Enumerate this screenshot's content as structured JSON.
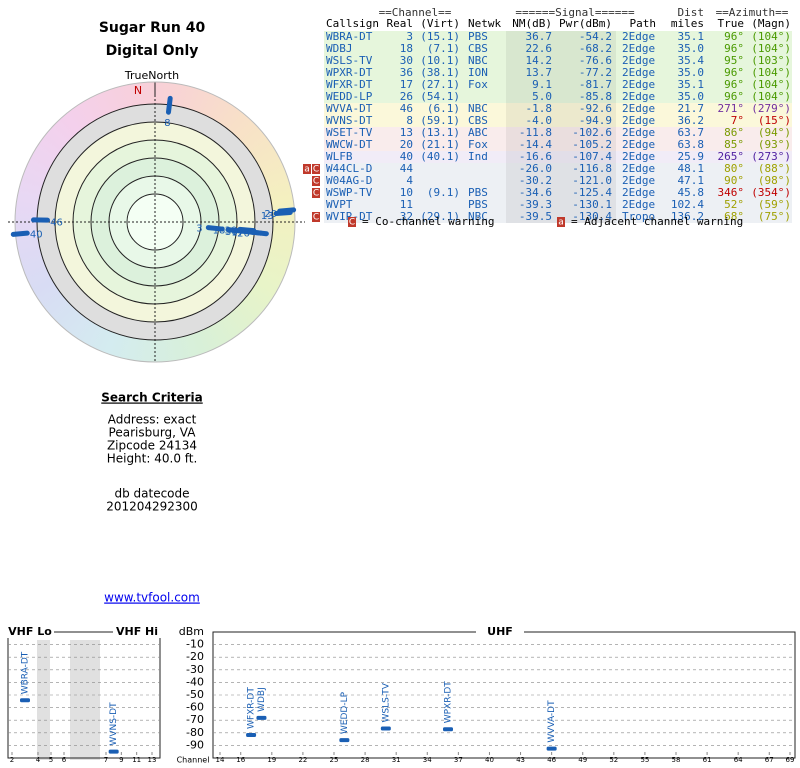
{
  "header": {
    "title": "Sugar Run 40",
    "subtitle": "Digital Only"
  },
  "polar": {
    "north_label": "TrueNorth",
    "north_mark": "N"
  },
  "table": {
    "group_headers": {
      "channel": "==Channel==",
      "signal": "======Signal======",
      "dist": "Dist",
      "azimuth": "==Azimuth=="
    },
    "columns": {
      "callsign": "Callsign",
      "real": "Real",
      "virt": "(Virt)",
      "netwk": "Netwk",
      "nm": "NM(dB)",
      "pwr": "Pwr(dBm)",
      "path": "Path",
      "dist": "miles",
      "true": "True",
      "magn": "(Magn)"
    },
    "rows": [
      {
        "callsign": "WBRA-DT",
        "real": "3",
        "virt": "(15.1)",
        "netwk": "PBS",
        "nm": "36.7",
        "pwr": "-54.2",
        "path": "2Edge",
        "dist": "35.1",
        "true": "96°",
        "magn": "(104°)",
        "color": "#e6f6dc",
        "azimuth_color": "#4a9a00"
      },
      {
        "callsign": "WDBJ",
        "real": "18",
        "virt": "(7.1)",
        "netwk": "CBS",
        "nm": "22.6",
        "pwr": "-68.2",
        "path": "2Edge",
        "dist": "35.0",
        "true": "96°",
        "magn": "(104°)",
        "color": "#e6f6dc",
        "azimuth_color": "#4a9a00"
      },
      {
        "callsign": "WSLS-TV",
        "real": "30",
        "virt": "(10.1)",
        "netwk": "NBC",
        "nm": "14.2",
        "pwr": "-76.6",
        "path": "2Edge",
        "dist": "35.4",
        "true": "95°",
        "magn": "(103°)",
        "color": "#e6f6dc",
        "azimuth_color": "#4a9a00"
      },
      {
        "callsign": "WPXR-DT",
        "real": "36",
        "virt": "(38.1)",
        "netwk": "ION",
        "nm": "13.7",
        "pwr": "-77.2",
        "path": "2Edge",
        "dist": "35.0",
        "true": "96°",
        "magn": "(104°)",
        "color": "#e6f6dc",
        "azimuth_color": "#4a9a00"
      },
      {
        "callsign": "WFXR-DT",
        "real": "17",
        "virt": "(27.1)",
        "netwk": "Fox",
        "nm": "9.1",
        "pwr": "-81.7",
        "path": "2Edge",
        "dist": "35.1",
        "true": "96°",
        "magn": "(104°)",
        "color": "#e6f6dc",
        "azimuth_color": "#4a9a00"
      },
      {
        "callsign": "WEDD-LP",
        "real": "26",
        "virt": "(54.1)",
        "nm": "5.0",
        "pwr": "-85.8",
        "path": "2Edge",
        "dist": "35.0",
        "true": "96°",
        "magn": "(104°)",
        "color": "#e6f6dc",
        "azimuth_color": "#4a9a00"
      },
      {
        "callsign": "WVVA-DT",
        "real": "46",
        "virt": "(6.1)",
        "netwk": "NBC",
        "nm": "-1.8",
        "pwr": "-92.6",
        "path": "2Edge",
        "dist": "21.7",
        "true": "271°",
        "magn": "(279°)",
        "color": "#fbf8da",
        "azimuth_color": "#7030a0"
      },
      {
        "callsign": "WVNS-DT",
        "real": "8",
        "virt": "(59.1)",
        "netwk": "CBS",
        "nm": "-4.0",
        "pwr": "-94.9",
        "path": "2Edge",
        "dist": "36.2",
        "true": "7°",
        "magn": "(15°)",
        "color": "#fbf8da",
        "azimuth_color": "#c00000"
      },
      {
        "callsign": "WSET-TV",
        "real": "13",
        "virt": "(13.1)",
        "netwk": "ABC",
        "nm": "-11.8",
        "pwr": "-102.6",
        "path": "2Edge",
        "dist": "63.7",
        "true": "86°",
        "magn": "(94°)",
        "color": "#f9ecec",
        "azimuth_color": "#7a9a00"
      },
      {
        "callsign": "WWCW-DT",
        "real": "20",
        "virt": "(21.1)",
        "netwk": "Fox",
        "nm": "-14.4",
        "pwr": "-105.2",
        "path": "2Edge",
        "dist": "63.8",
        "true": "85°",
        "magn": "(93°)",
        "color": "#f9ecec",
        "azimuth_color": "#7a9a00"
      },
      {
        "callsign": "WLFB",
        "real": "40",
        "virt": "(40.1)",
        "netwk": "Ind",
        "nm": "-16.6",
        "pwr": "-107.4",
        "path": "2Edge",
        "dist": "25.9",
        "true": "265°",
        "magn": "(273°)",
        "color": "#f1ecf7",
        "azimuth_color": "#5020a0"
      },
      {
        "callsign": "W44CL-D",
        "real": "44",
        "nm": "-26.0",
        "pwr": "-116.8",
        "path": "2Edge",
        "dist": "48.1",
        "true": "80°",
        "magn": "(88°)",
        "color": "#edf0f4",
        "azimuth_color": "#a0a000",
        "warnings": [
          "a",
          "C"
        ]
      },
      {
        "callsign": "W04AG-D",
        "real": "4",
        "nm": "-30.2",
        "pwr": "-121.0",
        "path": "2Edge",
        "dist": "47.1",
        "true": "90°",
        "magn": "(98°)",
        "color": "#edf0f4",
        "azimuth_color": "#a0a000",
        "warnings": [
          "C"
        ]
      },
      {
        "callsign": "WSWP-TV",
        "real": "10",
        "virt": "(9.1)",
        "netwk": "PBS",
        "nm": "-34.6",
        "pwr": "-125.4",
        "path": "2Edge",
        "dist": "45.8",
        "true": "346°",
        "magn": "(354°)",
        "color": "#edf0f4",
        "azimuth_color": "#c00000",
        "warnings": [
          "C"
        ]
      },
      {
        "callsign": "WVPT",
        "real": "11",
        "netwk": "PBS",
        "nm": "-39.3",
        "pwr": "-130.1",
        "path": "2Edge",
        "dist": "102.4",
        "true": "52°",
        "magn": "(59°)",
        "color": "#edf0f4",
        "azimuth_color": "#a0a000"
      },
      {
        "callsign": "WVIR-DT",
        "real": "32",
        "virt": "(29.1)",
        "netwk": "NBC",
        "nm": "-39.5",
        "pwr": "-130.4",
        "path": "Tropo",
        "dist": "136.2",
        "true": "68°",
        "magn": "(75°)",
        "color": "#edf0f4",
        "azimuth_color": "#a0a000",
        "warnings": [
          "C"
        ]
      }
    ]
  },
  "legend": [
    {
      "icon": "C",
      "text": "= Co-channel warning"
    },
    {
      "icon": "a",
      "text": "= Adjacent channel warning"
    }
  ],
  "search": {
    "heading": "Search Criteria",
    "lines": [
      "Address: exact",
      "Pearisburg, VA",
      "Zipcode 24134",
      "Height: 40.0 ft."
    ],
    "datecode_label": "db datecode",
    "datecode": "201204292300"
  },
  "link": "www.tvfool.com",
  "spectrum": {
    "ylabel": "dBm",
    "xlabel": "Channel",
    "ylim": [
      -100,
      0
    ],
    "yticks": [
      -10,
      -20,
      -30,
      -40,
      -50,
      -60,
      -70,
      -80,
      -90
    ],
    "sections": [
      {
        "label": "VHF Lo",
        "xlim": [
          2,
          6
        ],
        "ticks": [
          2,
          4,
          5,
          6
        ]
      },
      {
        "label": "VHF Hi",
        "xlim": [
          7,
          13
        ],
        "ticks": [
          7,
          9,
          11,
          13
        ]
      },
      {
        "label": "UHF",
        "xlim": [
          14,
          69
        ],
        "ticks": [
          14,
          16,
          19,
          22,
          25,
          28,
          31,
          34,
          37,
          40,
          43,
          46,
          49,
          52,
          55,
          58,
          61,
          64,
          67,
          69
        ]
      }
    ]
  }
}
